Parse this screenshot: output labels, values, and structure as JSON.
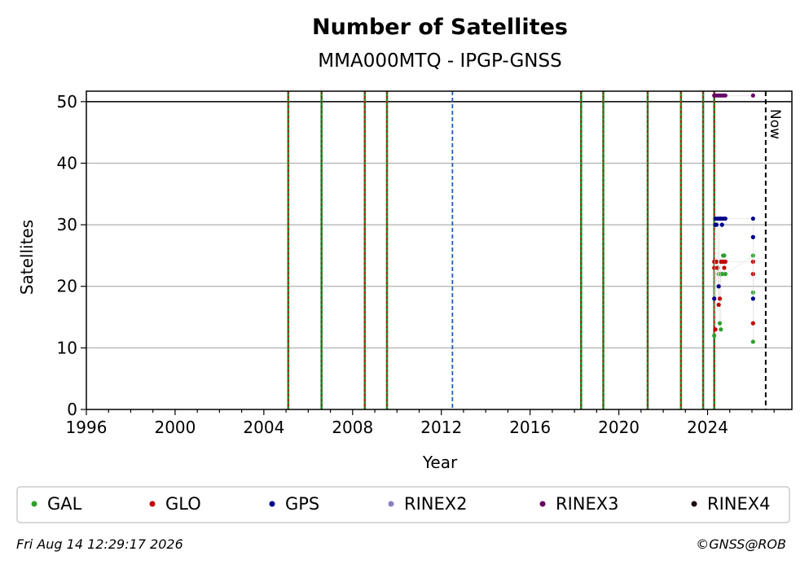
{
  "chart_data": {
    "type": "scatter",
    "title": "Number of Satellites",
    "subtitle": "MMA000MTQ - IPGP-GNSS",
    "xlabel": "Year",
    "ylabel": "Satellites",
    "xlim": [
      1996,
      2027.8
    ],
    "ylim": [
      0,
      51.7
    ],
    "x_ticks": [
      1996,
      2000,
      2004,
      2008,
      2012,
      2016,
      2020,
      2024
    ],
    "y_ticks": [
      0,
      10,
      20,
      30,
      40,
      50
    ],
    "grid": "horizontal",
    "max_line": 50,
    "now": {
      "x": 2026.62,
      "label": "Now"
    },
    "event_lines": [
      {
        "x": 2005.1,
        "kind": "receiver-antenna"
      },
      {
        "x": 2006.6,
        "kind": "receiver-antenna"
      },
      {
        "x": 2008.55,
        "kind": "receiver-antenna"
      },
      {
        "x": 2009.55,
        "kind": "receiver-antenna"
      },
      {
        "x": 2012.5,
        "kind": "other"
      },
      {
        "x": 2018.3,
        "kind": "receiver-antenna"
      },
      {
        "x": 2019.3,
        "kind": "receiver-antenna"
      },
      {
        "x": 2021.3,
        "kind": "receiver-antenna"
      },
      {
        "x": 2022.8,
        "kind": "receiver-antenna"
      },
      {
        "x": 2023.8,
        "kind": "receiver-antenna"
      },
      {
        "x": 2024.3,
        "kind": "receiver-antenna"
      }
    ],
    "series": [
      {
        "name": "GAL",
        "color": "#2ca02c",
        "points": [
          [
            2024.3,
            12
          ],
          [
            2024.35,
            13
          ],
          [
            2024.4,
            24
          ],
          [
            2024.45,
            23
          ],
          [
            2024.5,
            22
          ],
          [
            2024.55,
            14
          ],
          [
            2024.6,
            13
          ],
          [
            2024.6,
            22
          ],
          [
            2024.65,
            22
          ],
          [
            2024.7,
            25
          ],
          [
            2024.75,
            25
          ],
          [
            2024.8,
            22
          ],
          [
            2026.05,
            25
          ],
          [
            2026.05,
            19
          ],
          [
            2026.05,
            11
          ]
        ]
      },
      {
        "name": "GLO",
        "color": "#c00000",
        "points": [
          [
            2024.3,
            23
          ],
          [
            2024.3,
            24
          ],
          [
            2024.35,
            13
          ],
          [
            2024.4,
            24
          ],
          [
            2024.45,
            23
          ],
          [
            2024.5,
            17
          ],
          [
            2024.55,
            18
          ],
          [
            2024.6,
            24
          ],
          [
            2024.7,
            24
          ],
          [
            2024.75,
            23
          ],
          [
            2024.8,
            24
          ],
          [
            2026.05,
            24
          ],
          [
            2026.05,
            22
          ],
          [
            2026.05,
            14
          ]
        ]
      },
      {
        "name": "GPS",
        "color": "#00008b",
        "points": [
          [
            2024.3,
            18
          ],
          [
            2024.35,
            31
          ],
          [
            2024.35,
            30
          ],
          [
            2024.4,
            30
          ],
          [
            2024.45,
            31
          ],
          [
            2024.5,
            20
          ],
          [
            2024.55,
            31
          ],
          [
            2024.6,
            31
          ],
          [
            2024.65,
            30
          ],
          [
            2024.7,
            31
          ],
          [
            2024.8,
            31
          ],
          [
            2026.05,
            31
          ],
          [
            2026.05,
            28
          ],
          [
            2026.05,
            18
          ]
        ]
      },
      {
        "name": "RINEX2",
        "color": "#8a7fc7",
        "points": []
      },
      {
        "name": "RINEX3",
        "color": "#660066",
        "points": [
          [
            2024.3,
            51
          ],
          [
            2024.4,
            51
          ],
          [
            2024.5,
            51
          ],
          [
            2024.6,
            51
          ],
          [
            2024.7,
            51
          ],
          [
            2024.8,
            51
          ],
          [
            2026.05,
            51
          ]
        ]
      },
      {
        "name": "RINEX4",
        "color": "#1a0011",
        "points": []
      }
    ]
  },
  "footer": {
    "timestamp": "Fri Aug 14 12:29:17 2026",
    "credit": "©GNSS@ROB"
  }
}
